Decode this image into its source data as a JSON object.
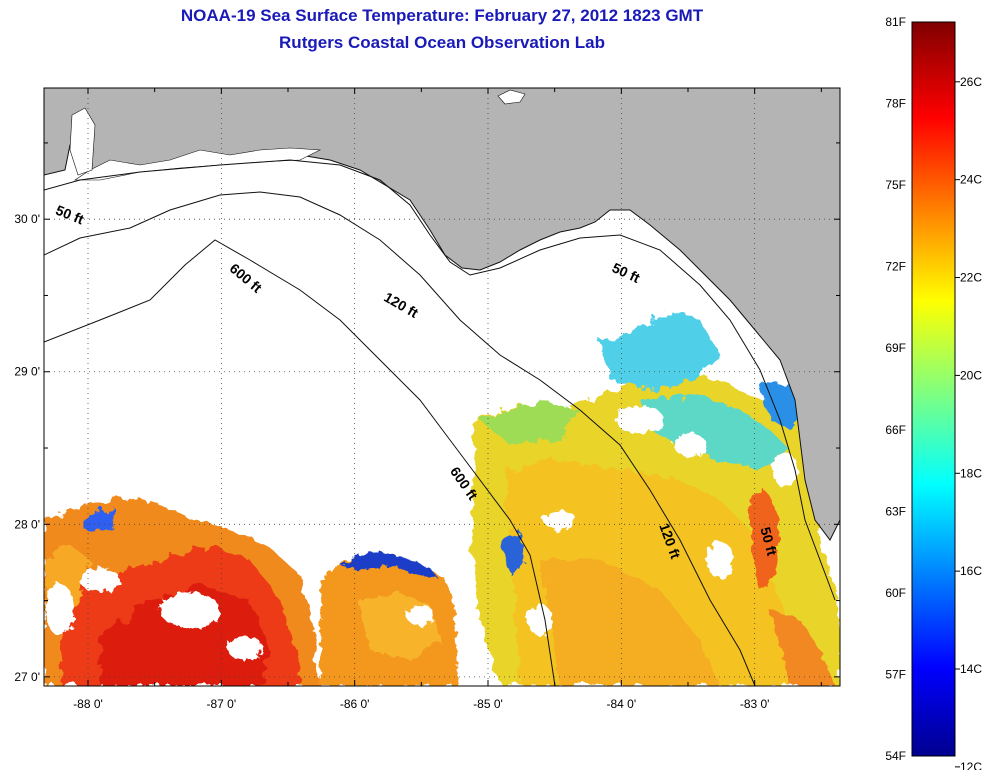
{
  "header": {
    "title": "NOAA-19 Sea Surface Temperature:  February 27, 2012 1823 GMT",
    "subtitle": "Rutgers Coastal Ocean Observation Lab"
  },
  "map": {
    "lon_ticks": [
      "-88 0'",
      "-87 0'",
      "-86 0'",
      "-85 0'",
      "-84 0'",
      "-83 0'"
    ],
    "lat_ticks": [
      "30 0'",
      "29 0'",
      "28 0'",
      "27 0'"
    ],
    "lon_range": [
      -88.33,
      -82.36
    ],
    "lat_range": [
      26.94,
      30.86
    ],
    "land_color": "#b4b4b4",
    "cloud_color": "#ffffff",
    "grid": "dotted",
    "contour_labels": [
      {
        "text": "50 ft",
        "lon": -88.15,
        "lat": 30.0
      },
      {
        "text": "50 ft",
        "lon": -83.98,
        "lat": 29.62
      },
      {
        "text": "50 ft",
        "lon": -82.93,
        "lat": 27.88
      },
      {
        "text": "600 ft",
        "lon": -86.84,
        "lat": 29.59
      },
      {
        "text": "600 ft",
        "lon": -85.21,
        "lat": 28.25
      },
      {
        "text": "120 ft",
        "lon": -85.67,
        "lat": 29.41
      },
      {
        "text": "120 ft",
        "lon": -83.67,
        "lat": 27.88
      }
    ]
  },
  "colorbar": {
    "fahrenheit_labels": [
      "81F",
      "78F",
      "75F",
      "72F",
      "69F",
      "66F",
      "63F",
      "60F",
      "57F",
      "54F"
    ],
    "celsius_labels": [
      "26C",
      "24C",
      "22C",
      "20C",
      "18C",
      "16C",
      "14C",
      "12C"
    ],
    "range_f": [
      54,
      81
    ],
    "colormap": [
      "#00008f",
      "#0000ff",
      "#00ffff",
      "#ffff00",
      "#ff0000",
      "#800000"
    ]
  }
}
